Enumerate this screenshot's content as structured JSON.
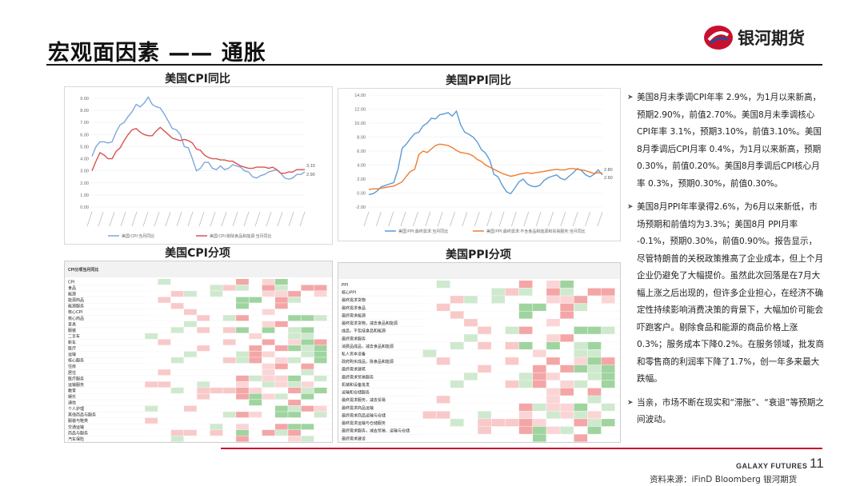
{
  "slide": {
    "title": "宏观面因素 —— 通胀",
    "logo_text": "银河期货",
    "page_number": "11",
    "brand_en": "GALAXY FUTURES",
    "source": "资料来源：iFinD Bloomberg 银河期货"
  },
  "panels": {
    "cpi_yoy_title": "美国CPI同比",
    "ppi_yoy_title": "美国PPI同比",
    "cpi_items_title": "美国CPI分项",
    "ppi_items_title": "美国PPI分项"
  },
  "notes": [
    "美国8月未季调CPI年率 2.9%，为1月以来新高，预期2.90%，前值2.70%。美国8月未季调核心CPI年率 3.1%，预期3.10%，前值3.10%。美国8月季调后CPI月率 0.4%，为1月以来新高，预期0.30%，前值0.20%。美国8月季调后CPI核心月率 0.3%，预期0.30%，前值0.30%。",
    "美国8月PPI年率录得2.6%，为6月以来新低，市场预期和前值均为3.3%；美国8月 PPI月率 -0.1%，预期0.30%，前值0.90%。报告显示，尽管特朗普的关税政策推高了企业成本，但上个月企业仍避免了大幅提价。虽然此次回落是在7月大幅上涨之后出现的，但许多企业担心，在经济不确定性持续影响消费决策的背景下，大幅加价可能会吓跑客户。剔除食品和能源的商品价格上涨0.3%；服务成本下降0.2%。在服务领域，批发商和零售商的利润率下降了1.7%，创一年多来最大跌幅。",
    "当亲，市场不断在现实和“滞胀”、“衰退”等预期之间波动。"
  ],
  "colors": {
    "accent_red": "#c8102e",
    "cpi_blue": "#7fa7d9",
    "cpi_red": "#d9534f",
    "ppi_blue": "#5b9bd5",
    "ppi_orange": "#ed7d31"
  },
  "chart_data": [
    {
      "type": "line",
      "title": "美国CPI同比",
      "ylim": [
        0,
        9
      ],
      "yticks": [
        "0.00",
        "1.00",
        "2.00",
        "3.00",
        "4.00",
        "5.00",
        "6.00",
        "7.00",
        "8.00",
        "9.00"
      ],
      "series": [
        {
          "name": "美国:CPI:当月同比",
          "values": [
            4.2,
            5.0,
            5.4,
            5.4,
            5.3,
            5.4,
            6.2,
            6.8,
            7.0,
            7.5,
            7.9,
            8.5,
            8.3,
            8.6,
            9.1,
            8.5,
            8.3,
            8.2,
            7.7,
            7.1,
            6.5,
            6.4,
            6.0,
            5.0,
            4.9,
            4.0,
            3.0,
            3.2,
            3.7,
            3.7,
            3.2,
            3.1,
            3.4,
            3.1,
            3.2,
            3.5,
            3.4,
            3.3,
            3.0,
            2.9,
            2.5,
            2.4,
            2.6,
            2.7,
            2.9,
            3.0,
            3.1,
            2.8,
            2.4,
            2.3,
            2.4,
            2.7,
            2.7,
            2.9
          ]
        },
        {
          "name": "美国:CPI:剔除食品和能源:当月同比",
          "values": [
            3.0,
            3.8,
            4.5,
            4.3,
            4.0,
            4.0,
            4.6,
            4.9,
            5.5,
            6.0,
            6.4,
            6.5,
            6.2,
            6.0,
            5.9,
            5.9,
            6.3,
            6.6,
            6.3,
            6.0,
            5.7,
            5.6,
            5.5,
            5.6,
            5.5,
            5.3,
            4.8,
            4.7,
            4.3,
            4.1,
            4.0,
            4.0,
            3.9,
            3.9,
            3.8,
            3.8,
            3.6,
            3.4,
            3.3,
            3.2,
            3.2,
            3.3,
            3.3,
            3.3,
            3.2,
            3.3,
            3.1,
            2.8,
            2.8,
            2.9,
            2.9,
            3.1,
            3.1,
            3.1
          ]
        }
      ],
      "annotations": [
        "3.10",
        "2.90"
      ]
    },
    {
      "type": "line",
      "title": "美国PPI同比",
      "ylim": [
        -2,
        14
      ],
      "yticks": [
        "-2.00",
        "0.00",
        "2.00",
        "4.00",
        "6.00",
        "8.00",
        "10.00",
        "12.00",
        "14.00"
      ],
      "series": [
        {
          "name": "美国:PPI:最终需求:当月同比",
          "values": [
            -0.2,
            -0.1,
            0.3,
            0.9,
            1.1,
            1.3,
            1.5,
            3.4,
            6.4,
            7.0,
            7.8,
            8.5,
            8.7,
            9.6,
            10.0,
            10.7,
            10.6,
            11.2,
            11.3,
            11.5,
            11.0,
            11.7,
            9.8,
            8.7,
            8.4,
            8.0,
            7.3,
            6.2,
            5.7,
            4.7,
            2.7,
            2.3,
            1.1,
            0.2,
            -0.1,
            0.7,
            1.6,
            2.0,
            1.3,
            1.0,
            0.9,
            1.1,
            1.8,
            2.2,
            2.4,
            2.6,
            2.1,
            1.9,
            2.4,
            2.9,
            3.5,
            3.2,
            2.6,
            2.3,
            2.7,
            3.3,
            2.6
          ]
        },
        {
          "name": "美国:PPI:最终需求:不含食品和能源和贸易服务:当月同比",
          "values": [
            0.5,
            0.6,
            0.6,
            0.7,
            0.8,
            0.9,
            1.0,
            1.3,
            1.6,
            2.4,
            3.1,
            3.4,
            5.5,
            6.0,
            5.8,
            6.3,
            6.8,
            7.0,
            6.9,
            6.8,
            6.5,
            6.1,
            5.8,
            5.7,
            5.6,
            5.3,
            4.8,
            4.5,
            4.0,
            3.7,
            3.4,
            3.1,
            2.8,
            2.6,
            2.4,
            2.5,
            2.7,
            2.8,
            2.9,
            2.8,
            2.9,
            3.0,
            3.1,
            3.2,
            3.3,
            3.4,
            3.3,
            3.3,
            3.5,
            3.5,
            3.4,
            3.3,
            3.2,
            3.0,
            2.8,
            2.9,
            2.8
          ]
        }
      ],
      "annotations": [
        "2.80",
        "2.60"
      ]
    }
  ],
  "tables": {
    "cpi_header": "CPI分项当月同比",
    "cpi_rows": [
      "CPI",
      "食品",
      "能源",
      "能源商品",
      "能源服务",
      "核心CPI",
      "核心商品",
      "家具",
      "服装",
      "二手车",
      "新车",
      "医疗",
      "运输",
      "核心服务",
      "住房",
      "居住",
      "医疗服务",
      "运输服务",
      "教育",
      "娱乐",
      "通信",
      "个人护理",
      "其他商品与服务",
      "服装与鞋类",
      "交通运输",
      "商品与服务",
      "汽车保险"
    ],
    "ppi_rows": [
      "PPI",
      "核心PPI",
      "最终需求货物",
      "最终需求食品",
      "最终需求能源",
      "最终需求货物，减去食品和能源",
      "成品，不包括食品和能源",
      "最终需求服务",
      "消费品成品，减去食品和能源",
      "私人资本设备",
      "政府购买成品，除食品和能源",
      "最终需求建筑",
      "最终需求贸易服务",
      "机械和设备批发",
      "运输和仓储服务",
      "最终需求服务，减去贸易",
      "最终需求商品运输",
      "最终需求商品运输与仓储",
      "最终需求运输与仓储服务",
      "最终需求服务，减去贸易、运输与仓储",
      "最终需求建设"
    ]
  }
}
